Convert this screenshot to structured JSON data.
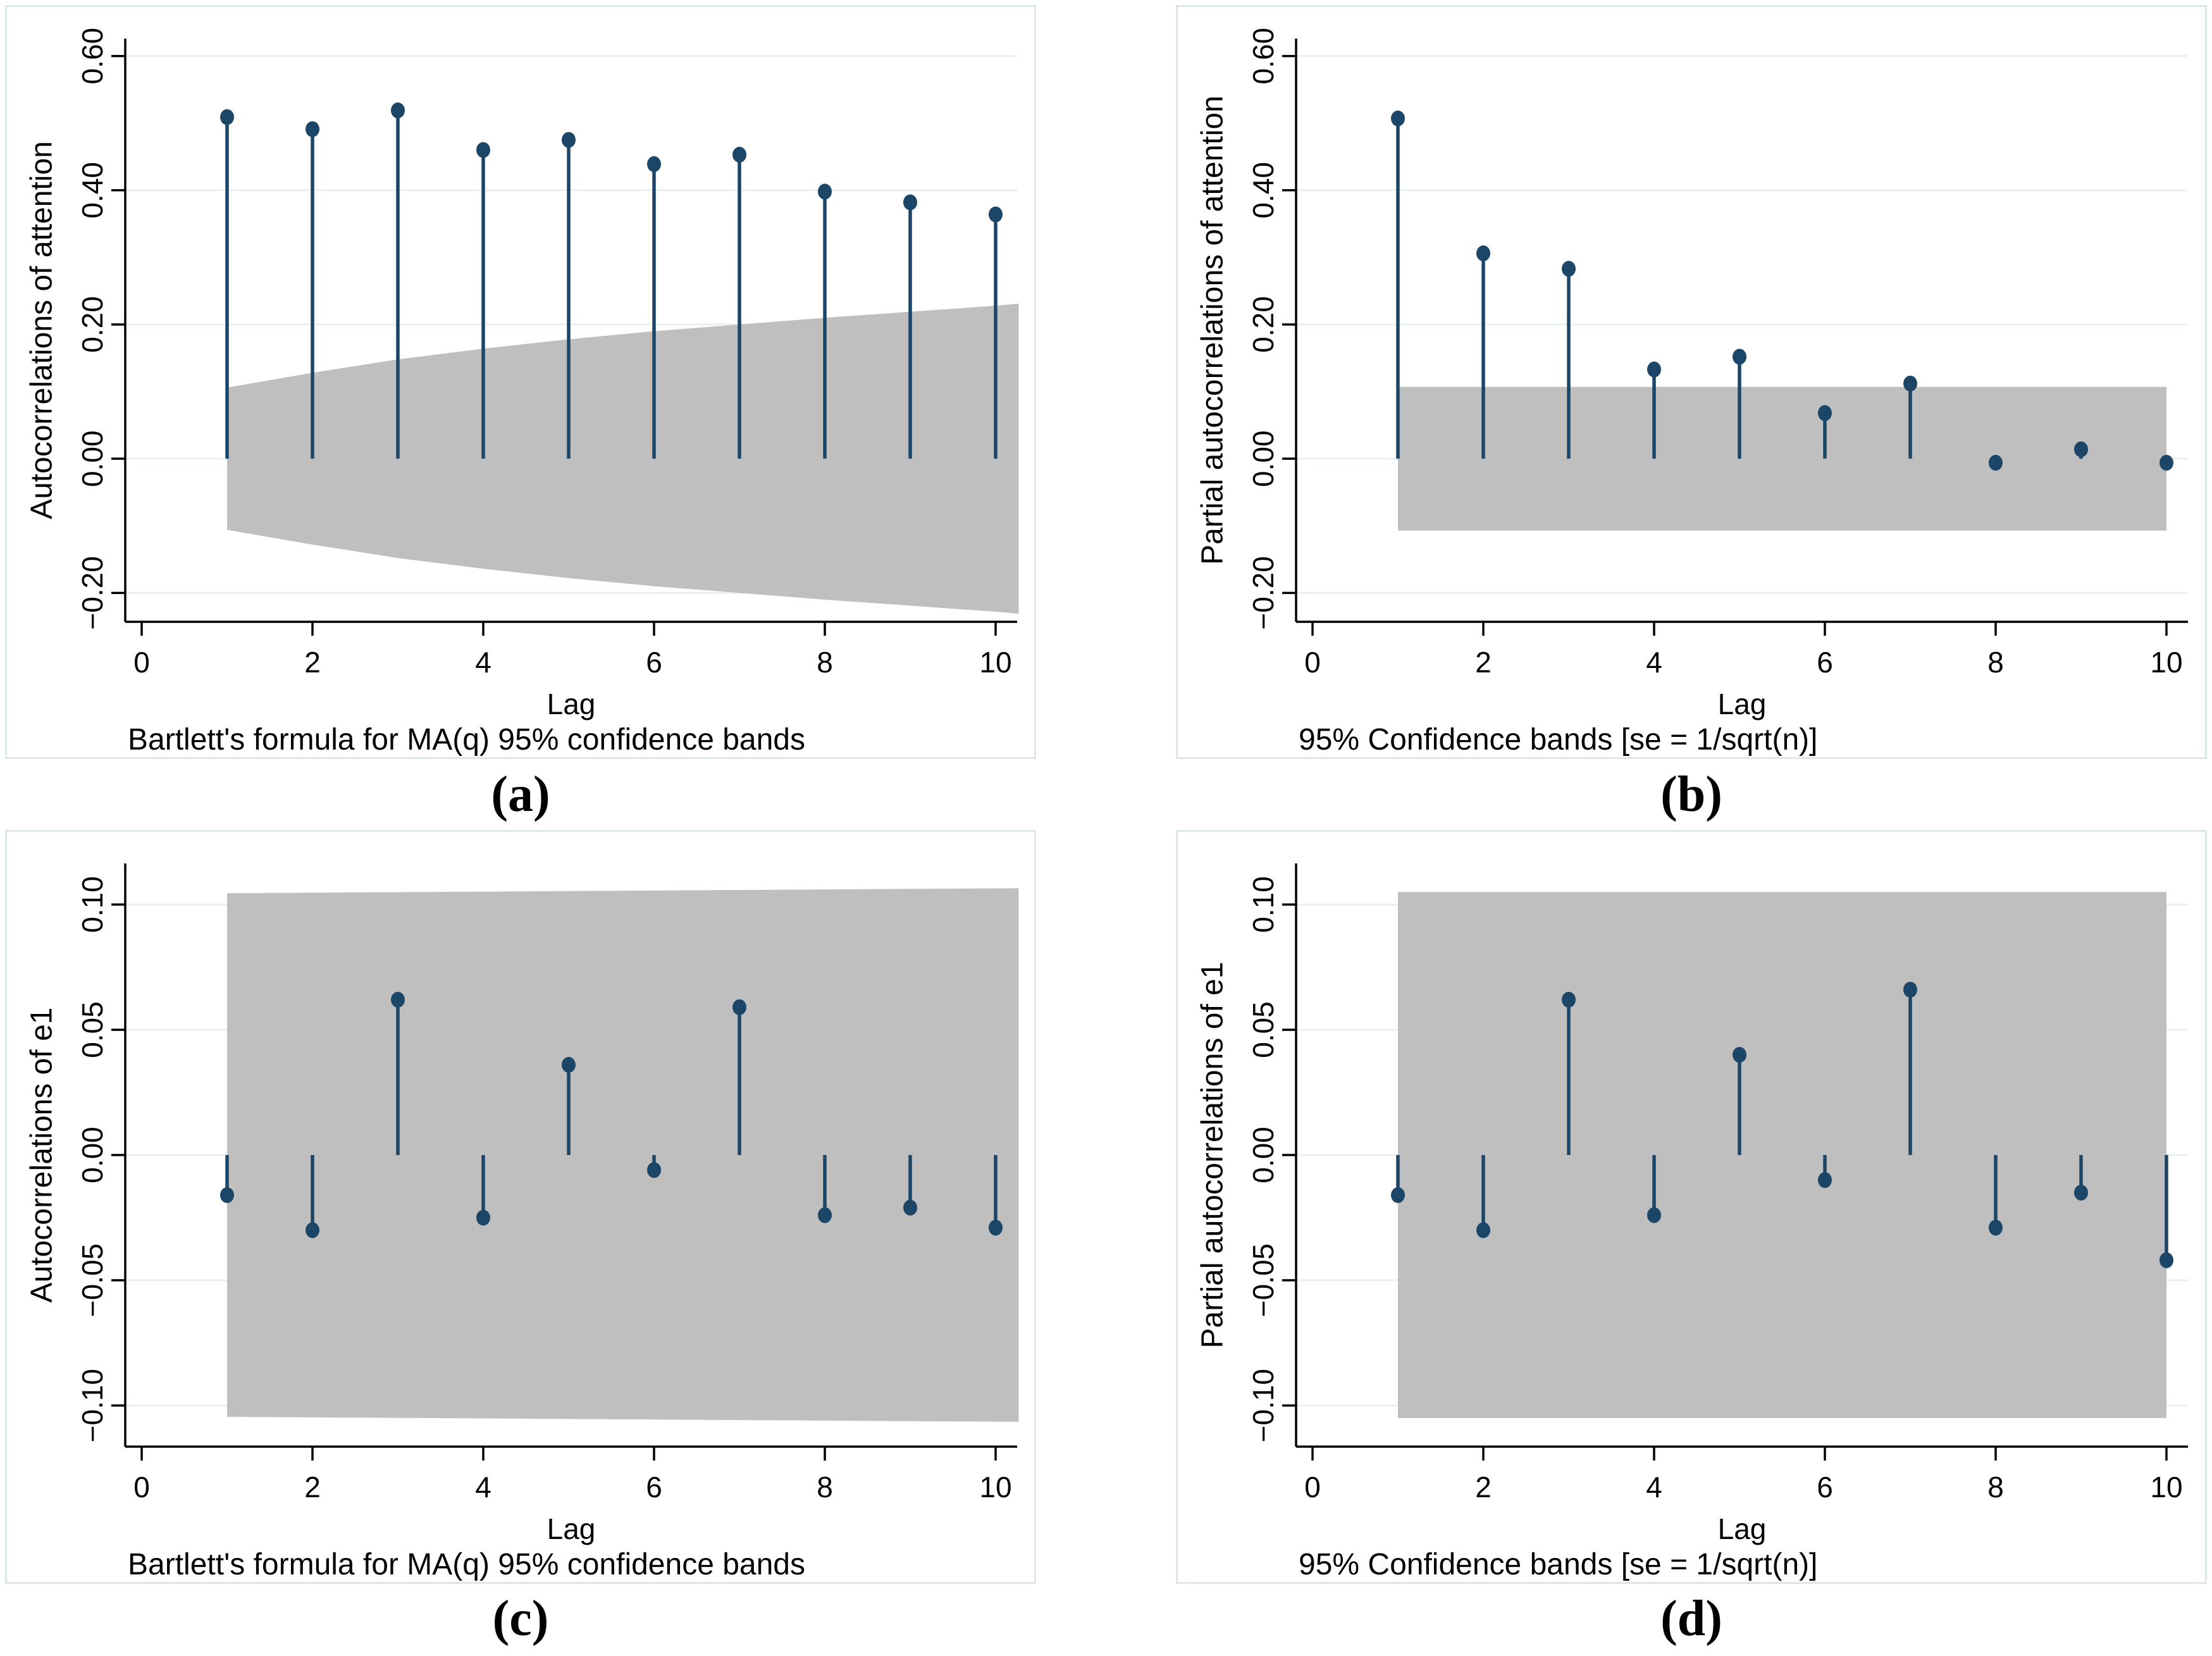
{
  "style": {
    "navy": "#1c4668",
    "band_gray": "#bfbfbf",
    "grid_color": "#e8f0f2",
    "panel_border": "#dde7ea",
    "axis_color": "#000000",
    "background": "#ffffff"
  },
  "chart_data": [
    {
      "type": "scatter",
      "subtype": "acf-stem-lollipop",
      "title": "",
      "xlabel": "Lag",
      "ylabel": "Autocorrelations of attention",
      "note": "Bartlett's formula for MA(q) 95% confidence bands",
      "caption_label": "(a)",
      "x": [
        1,
        2,
        3,
        4,
        5,
        6,
        7,
        8,
        9,
        10
      ],
      "values": [
        0.509,
        0.491,
        0.519,
        0.46,
        0.475,
        0.439,
        0.453,
        0.398,
        0.382,
        0.364
      ],
      "band": {
        "label": "Bartlett 95% confidence band",
        "x": [
          1,
          2,
          3,
          4,
          5,
          6,
          7,
          8,
          9,
          10,
          10.27
        ],
        "upper": [
          0.106,
          0.128,
          0.148,
          0.164,
          0.178,
          0.19,
          0.2,
          0.21,
          0.219,
          0.228,
          0.231
        ],
        "symmetric": true
      },
      "xlim": [
        -0.17,
        10.27
      ],
      "ylim": [
        -0.243,
        0.626
      ],
      "xticks": [
        0,
        2,
        4,
        6,
        8,
        10
      ],
      "xtick_labels": [
        "0",
        "2",
        "4",
        "6",
        "8",
        "10"
      ],
      "yticks": [
        -0.2,
        0.0,
        0.2,
        0.4,
        0.6
      ],
      "ytick_labels": [
        "−0.20",
        "0.00",
        "0.20",
        "0.40",
        "0.60"
      ],
      "grid": true,
      "legend": "none"
    },
    {
      "type": "scatter",
      "subtype": "pacf-stem-lollipop",
      "title": "",
      "xlabel": "Lag",
      "ylabel": "Partial autocorrelations of attention",
      "note": "95% Confidence bands [se = 1/sqrt(n)]",
      "caption_label": "(b)",
      "x": [
        1,
        2,
        3,
        4,
        5,
        6,
        7,
        8,
        9,
        10
      ],
      "values": [
        0.507,
        0.306,
        0.283,
        0.133,
        0.152,
        0.068,
        0.112,
        -0.006,
        0.014,
        -0.006
      ],
      "band": {
        "label": "95% confidence band",
        "x": [
          1,
          10
        ],
        "upper": [
          0.107,
          0.107
        ],
        "symmetric": true
      },
      "xlim": [
        -0.17,
        10.27
      ],
      "ylim": [
        -0.243,
        0.626
      ],
      "xticks": [
        0,
        2,
        4,
        6,
        8,
        10
      ],
      "xtick_labels": [
        "0",
        "2",
        "4",
        "6",
        "8",
        "10"
      ],
      "yticks": [
        -0.2,
        0.0,
        0.2,
        0.4,
        0.6
      ],
      "ytick_labels": [
        "−0.20",
        "0.00",
        "0.20",
        "0.40",
        "0.60"
      ],
      "grid": true,
      "legend": "none"
    },
    {
      "type": "scatter",
      "subtype": "acf-stem-lollipop",
      "title": "",
      "xlabel": "Lag",
      "ylabel": "Autocorrelations of e1",
      "note": "Bartlett's formula for MA(q) 95% confidence bands",
      "caption_label": "(c)",
      "x": [
        1,
        2,
        3,
        4,
        5,
        6,
        7,
        8,
        9,
        10
      ],
      "values": [
        -0.016,
        -0.03,
        0.062,
        -0.025,
        0.036,
        -0.006,
        0.059,
        -0.024,
        -0.021,
        -0.029
      ],
      "band": {
        "label": "Bartlett 95% confidence band",
        "x": [
          1,
          10.27
        ],
        "upper": [
          0.1045,
          0.1065
        ],
        "symmetric": true
      },
      "xlim": [
        -0.17,
        10.27
      ],
      "ylim": [
        -0.1164,
        0.1164
      ],
      "xticks": [
        0,
        2,
        4,
        6,
        8,
        10
      ],
      "xtick_labels": [
        "0",
        "2",
        "4",
        "6",
        "8",
        "10"
      ],
      "yticks": [
        -0.1,
        -0.05,
        0.0,
        0.05,
        0.1
      ],
      "ytick_labels": [
        "−0.10",
        "−0.05",
        "0.00",
        "0.05",
        "0.10"
      ],
      "grid": true,
      "legend": "none"
    },
    {
      "type": "scatter",
      "subtype": "pacf-stem-lollipop",
      "title": "",
      "xlabel": "Lag",
      "ylabel": "Partial autocorrelations of e1",
      "note": "95% Confidence bands [se = 1/sqrt(n)]",
      "caption_label": "(d)",
      "x": [
        1,
        2,
        3,
        4,
        5,
        6,
        7,
        8,
        9,
        10
      ],
      "values": [
        -0.016,
        -0.03,
        0.062,
        -0.024,
        0.04,
        -0.01,
        0.066,
        -0.029,
        -0.015,
        -0.042
      ],
      "band": {
        "label": "95% confidence band",
        "x": [
          1,
          10
        ],
        "upper": [
          0.105,
          0.105
        ],
        "symmetric": true
      },
      "xlim": [
        -0.17,
        10.27
      ],
      "ylim": [
        -0.1164,
        0.1164
      ],
      "xticks": [
        0,
        2,
        4,
        6,
        8,
        10
      ],
      "xtick_labels": [
        "0",
        "2",
        "4",
        "6",
        "8",
        "10"
      ],
      "yticks": [
        -0.1,
        -0.05,
        0.0,
        0.05,
        0.1
      ],
      "ytick_labels": [
        "−0.10",
        "−0.05",
        "0.00",
        "0.05",
        "0.10"
      ],
      "grid": true,
      "legend": "none"
    }
  ]
}
